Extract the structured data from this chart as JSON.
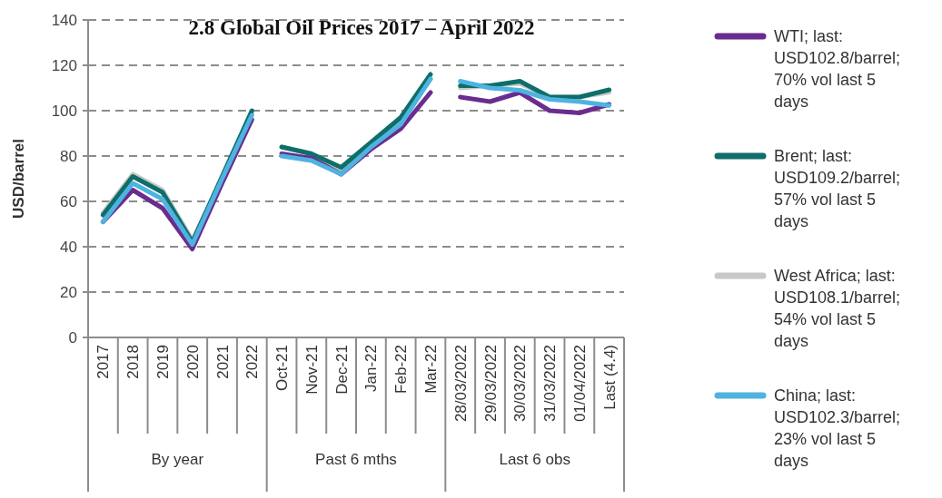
{
  "chart_data": {
    "type": "line",
    "title": "2.8 Global Oil Prices 2017 – April 2022",
    "ylabel": "USD/barrel",
    "categories": [
      "2017",
      "2018",
      "2019",
      "2020",
      "2021",
      "2022",
      "Oct-21",
      "Nov-21",
      "Dec-21",
      "Jan-22",
      "Feb-22",
      "Mar-22",
      "28/03/2022",
      "29/03/2022",
      "30/03/2022",
      "31/03/2022",
      "01/04/2022",
      "Last (4.4)"
    ],
    "annotations": [
      "By year",
      "Past 6 mths",
      "Last 6 obs"
    ],
    "series": [
      {
        "name": "WTI; last: USD102.8/barrel; 70% vol last 5 days",
        "color": "#6a2c8e",
        "values": [
          51,
          65,
          57,
          39,
          68,
          96,
          81,
          79,
          72,
          83,
          92,
          108,
          106,
          104,
          108,
          100,
          99,
          102.8
        ]
      },
      {
        "name": "Brent; last: USD109.2/barrel; 57% vol last 5 days",
        "color": "#0e6e6a",
        "values": [
          54,
          71,
          64,
          42,
          71,
          100,
          84,
          81,
          75,
          86,
          97,
          116,
          111,
          111,
          113,
          106,
          106,
          109.2
        ]
      },
      {
        "name": "West Africa; last: USD108.1/barrel; 54% vol last 5 days",
        "color": "#c8c8c8",
        "values": [
          55,
          72,
          65,
          43,
          70,
          99,
          84,
          81,
          74,
          85,
          95,
          114,
          110,
          111,
          112,
          106,
          106,
          108.1
        ]
      },
      {
        "name": "China; last: USD102.3/barrel; 23% vol last 5 days",
        "color": "#4fb3e0",
        "values": [
          51,
          68,
          61,
          41,
          70,
          98,
          80,
          78,
          72,
          84,
          94,
          114,
          113,
          110,
          109,
          105,
          104,
          102.3
        ]
      }
    ],
    "ylim": [
      0,
      140
    ],
    "yticks": [
      0,
      20,
      40,
      60,
      80,
      100,
      120,
      140
    ],
    "grid": "y",
    "legend": "right",
    "marker": "none",
    "line_style": "solid"
  }
}
